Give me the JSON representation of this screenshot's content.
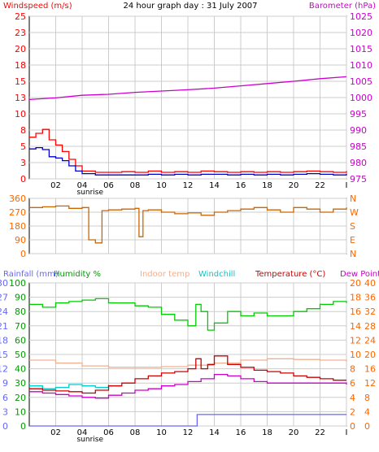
{
  "title": "24 hour graph day : 31 July 2007",
  "colors": {
    "windspeed": "#ff0000",
    "windspeed_avg": "#0000cc",
    "barometer": "#cc00cc",
    "winddir": "#cc6600",
    "rainfall": "#6666ff",
    "humidity": "#00cc00",
    "indoor_temp": "#f0b090",
    "windchill": "#00cccc",
    "temperature": "#cc0000",
    "dewpoint": "#cc00cc",
    "left_axis_a": "#ff0000",
    "left_axis_c": "#009900",
    "right_axis_a": "#cc00cc",
    "right_axis_c": "#ff6600",
    "grid": "#cccccc",
    "frame": "#000000"
  },
  "x_ticks": [
    "02",
    "04",
    "06",
    "08",
    "10",
    "12",
    "14",
    "16",
    "18",
    "20",
    "22",
    "I"
  ],
  "sunrise_label": "sunrise",
  "chart_data": [
    {
      "type": "line",
      "title": "24 hour graph day : 31 July 2007",
      "left_label": "Windspeed (m/s)",
      "right_label": "Barometer (hPa)",
      "left_ticks": [
        "0",
        "3",
        "5",
        "8",
        "10",
        "13",
        "15",
        "18",
        "20",
        "23",
        "25"
      ],
      "right_ticks": [
        "975",
        "980",
        "985",
        "990",
        "995",
        "1000",
        "1005",
        "1010",
        "1015",
        "1020",
        "1025"
      ],
      "ylim_left": [
        0,
        25
      ],
      "ylim_right": [
        975,
        1025
      ],
      "xlim": [
        0,
        24
      ],
      "series": [
        {
          "key": "barometer",
          "axis": "right",
          "x": [
            0,
            2,
            4,
            6,
            8,
            10,
            12,
            14,
            16,
            18,
            20,
            22,
            24
          ],
          "values": [
            999.4,
            999.9,
            1000.7,
            1001.0,
            1001.6,
            1002.0,
            1002.4,
            1002.9,
            1003.6,
            1004.3,
            1005.0,
            1005.8,
            1006.4
          ]
        },
        {
          "key": "windspeed",
          "axis": "left",
          "x": [
            0,
            0.5,
            1,
            1.5,
            2,
            2.5,
            3,
            3.5,
            4,
            5,
            6,
            7,
            8,
            9,
            10,
            11,
            12,
            13,
            14,
            15,
            16,
            17,
            18,
            19,
            20,
            21,
            22,
            23,
            24
          ],
          "values": [
            6.4,
            7.0,
            7.6,
            6.0,
            5.2,
            4.2,
            3.0,
            2.0,
            1.2,
            1.0,
            1.0,
            1.1,
            1.0,
            1.2,
            1.0,
            1.1,
            1.0,
            1.2,
            1.1,
            1.0,
            1.1,
            1.0,
            1.1,
            1.0,
            1.1,
            1.2,
            1.1,
            1.0,
            1.2
          ]
        },
        {
          "key": "windspeed_avg",
          "axis": "left",
          "x": [
            0,
            0.5,
            1,
            1.5,
            2,
            2.5,
            3,
            3.5,
            4,
            5,
            6,
            7,
            8,
            9,
            10,
            11,
            12,
            13,
            14,
            15,
            16,
            17,
            18,
            19,
            20,
            21,
            22,
            23,
            24
          ],
          "values": [
            4.6,
            4.8,
            4.5,
            3.4,
            3.2,
            2.8,
            2.0,
            1.2,
            0.8,
            0.6,
            0.6,
            0.6,
            0.6,
            0.7,
            0.6,
            0.7,
            0.6,
            0.7,
            0.7,
            0.6,
            0.7,
            0.6,
            0.7,
            0.6,
            0.7,
            0.8,
            0.7,
            0.6,
            0.8
          ]
        }
      ]
    },
    {
      "type": "line",
      "left_ticks": [
        "0",
        "90",
        "180",
        "270",
        "360"
      ],
      "right_ticks": [
        "N",
        "E",
        "S",
        "W",
        "N"
      ],
      "ylim_left": [
        0,
        360
      ],
      "xlim": [
        0,
        24
      ],
      "series": [
        {
          "key": "winddir",
          "axis": "left",
          "x": [
            0,
            1,
            2,
            3,
            4,
            4.5,
            5,
            5.5,
            6,
            7,
            8,
            8.3,
            8.6,
            9,
            10,
            11,
            12,
            13,
            14,
            15,
            16,
            17,
            18,
            19,
            20,
            21,
            22,
            23,
            24
          ],
          "values": [
            300,
            305,
            310,
            295,
            300,
            90,
            70,
            280,
            285,
            290,
            295,
            110,
            280,
            285,
            270,
            260,
            265,
            250,
            270,
            280,
            290,
            300,
            285,
            270,
            300,
            290,
            270,
            290,
            300
          ]
        }
      ]
    },
    {
      "type": "line",
      "left_label_a": "Rainfall (mm)",
      "left_label_b": "Humidity %",
      "center_label_a": "Indoor temp",
      "center_label_b": "Windchill",
      "right_label_a": "Temperature (°C)",
      "right_label_b": "Dew Point",
      "ticks_rain": [
        "0",
        "3",
        "6",
        "9",
        "12",
        "15",
        "18",
        "21",
        "24",
        "27",
        "30"
      ],
      "ticks_humidity": [
        "0",
        "10",
        "20",
        "30",
        "40",
        "50",
        "60",
        "70",
        "80",
        "90",
        "100"
      ],
      "ticks_temp_a": [
        "0",
        "2",
        "4",
        "6",
        "8",
        "10",
        "12",
        "14",
        "16",
        "18",
        "20"
      ],
      "ticks_temp_b": [
        "0",
        "4",
        "8",
        "12",
        "16",
        "20",
        "24",
        "28",
        "32",
        "36",
        "40"
      ],
      "ylim_humidity": [
        0,
        100
      ],
      "ylim_temp": [
        0,
        20
      ],
      "ylim_rain": [
        0,
        30
      ],
      "xlim": [
        0,
        24
      ],
      "series": [
        {
          "key": "humidity",
          "axis": "humidity",
          "x": [
            0,
            1,
            2,
            3,
            4,
            5,
            6,
            7,
            8,
            9,
            10,
            11,
            12,
            12.6,
            13,
            13.5,
            14,
            15,
            16,
            17,
            18,
            19,
            20,
            21,
            22,
            23,
            24
          ],
          "values": [
            85,
            83,
            86,
            87,
            88,
            89,
            86,
            86,
            84,
            83,
            78,
            74,
            70,
            85,
            80,
            67,
            72,
            80,
            77,
            79,
            77,
            77,
            80,
            82,
            85,
            87,
            86
          ]
        },
        {
          "key": "indoor_temp",
          "axis": "temp",
          "x": [
            0,
            2,
            4,
            6,
            8,
            10,
            12,
            14,
            16,
            18,
            20,
            22,
            24
          ],
          "values": [
            9.2,
            8.8,
            8.4,
            8.2,
            8.2,
            8.3,
            8.5,
            8.8,
            9.2,
            9.4,
            9.3,
            9.2,
            9.0
          ]
        },
        {
          "key": "windchill",
          "axis": "temp",
          "x": [
            0,
            1,
            2,
            3,
            4,
            5,
            6
          ],
          "values": [
            5.6,
            5.2,
            5.4,
            5.8,
            5.6,
            5.4,
            5.8
          ]
        },
        {
          "key": "temperature",
          "axis": "temp",
          "x": [
            0,
            1,
            2,
            3,
            4,
            5,
            6,
            7,
            8,
            9,
            10,
            11,
            12,
            12.6,
            13,
            13.5,
            14,
            15,
            16,
            17,
            18,
            19,
            20,
            21,
            22,
            23,
            24
          ],
          "values": [
            5.2,
            5.0,
            4.9,
            4.8,
            4.6,
            5.0,
            5.6,
            6.0,
            6.6,
            7.0,
            7.4,
            7.6,
            8.0,
            9.4,
            8.0,
            8.6,
            9.8,
            8.6,
            8.2,
            7.8,
            7.6,
            7.4,
            7.0,
            6.8,
            6.6,
            6.4,
            6.4
          ]
        },
        {
          "key": "dewpoint",
          "axis": "temp",
          "x": [
            0,
            1,
            2,
            3,
            4,
            5,
            6,
            7,
            8,
            9,
            10,
            11,
            12,
            13,
            14,
            15,
            16,
            17,
            18,
            19,
            20,
            21,
            22,
            23,
            24
          ],
          "values": [
            4.8,
            4.6,
            4.4,
            4.2,
            4.0,
            3.9,
            4.3,
            4.6,
            5.0,
            5.2,
            5.6,
            5.8,
            6.2,
            6.6,
            7.2,
            7.0,
            6.6,
            6.2,
            6.0,
            6.0,
            6.0,
            6.0,
            6.0,
            6.0,
            5.8
          ]
        },
        {
          "key": "rainfall",
          "axis": "rain",
          "x": [
            0,
            12.6,
            12.7,
            24
          ],
          "values": [
            0,
            0,
            2.4,
            2.4
          ]
        }
      ]
    }
  ]
}
